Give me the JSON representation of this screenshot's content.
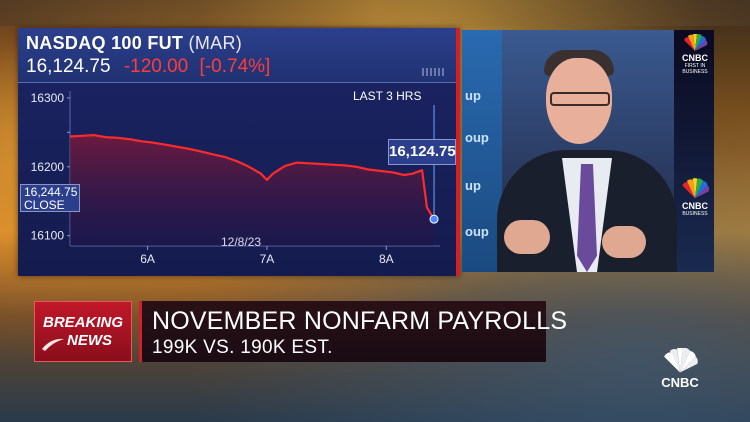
{
  "ticker": {
    "name": "NASDAQ 100 FUT",
    "contract": "(MAR)",
    "price": "16,124.75",
    "change": "-120.00",
    "change_pct": "[-0.74%]"
  },
  "chart": {
    "range_label": "LAST 3 HRS",
    "date_label": "12/8/23",
    "close_value": "16,244.75",
    "close_label": "CLOSE",
    "last_value": "16,124.75"
  },
  "chart_data": {
    "type": "line",
    "title": "",
    "xlabel": "",
    "ylabel": "",
    "ylim": [
      16085,
      16310
    ],
    "xlim": [
      5.35,
      8.45
    ],
    "yticks": [
      16100,
      16150,
      16200,
      16250,
      16300
    ],
    "yticks_labels": [
      "16100",
      "16150",
      "16200",
      "",
      "16300"
    ],
    "xticks": [
      6,
      7,
      8
    ],
    "xtick_labels": [
      "6A",
      "7A",
      "8A"
    ],
    "series": [
      {
        "name": "",
        "x": [
          5.35,
          5.45,
          5.55,
          5.65,
          5.75,
          5.85,
          5.95,
          6.05,
          6.15,
          6.25,
          6.35,
          6.45,
          6.55,
          6.65,
          6.75,
          6.85,
          6.95,
          7.0,
          7.05,
          7.15,
          7.25,
          7.35,
          7.45,
          7.55,
          7.65,
          7.75,
          7.85,
          7.95,
          8.05,
          8.15,
          8.22,
          8.3,
          8.34,
          8.4
        ],
        "y": [
          16244,
          16245,
          16246,
          16243,
          16242,
          16240,
          16237,
          16235,
          16232,
          16229,
          16226,
          16222,
          16218,
          16214,
          16208,
          16200,
          16190,
          16181,
          16190,
          16201,
          16206,
          16205,
          16204,
          16203,
          16202,
          16200,
          16196,
          16194,
          16192,
          16188,
          16190,
          16195,
          16141,
          16124
        ]
      }
    ],
    "grid": false,
    "legend": "none"
  },
  "breaking": {
    "line1": "BREAKING",
    "line2": "NEWS"
  },
  "headline": {
    "title": "NOVEMBER NONFARM PAYROLLS",
    "subtitle": "199K VS. 190K EST."
  },
  "video": {
    "screen_left_texts": [
      "up",
      "oup",
      "up",
      "oup"
    ],
    "cnbc_label": "CNBC",
    "cnbc_sub": "FIRST IN BUSINESS",
    "cnbc_sub2": "BUSINESS"
  },
  "brand": {
    "logo": "CNBC"
  },
  "colors": {
    "down": "#ff3b3b",
    "panel": "#121a4a",
    "accent": "#d0202a"
  }
}
